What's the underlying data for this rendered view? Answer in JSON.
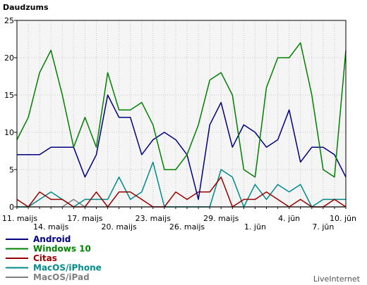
{
  "chart_data": {
    "type": "line",
    "ylabel": "Daudzums",
    "ylim": [
      0,
      25
    ],
    "yticks": [
      0,
      5,
      10,
      15,
      20,
      25
    ],
    "grid": true,
    "legend_position": "bottom-left",
    "x_count": 30,
    "x_tick_labels": [
      {
        "index": 0,
        "label": "11. maijs",
        "row": 1
      },
      {
        "index": 3,
        "label": "14. maijs",
        "row": 2
      },
      {
        "index": 6,
        "label": "17. maijs",
        "row": 1
      },
      {
        "index": 9,
        "label": "20. maijs",
        "row": 2
      },
      {
        "index": 12,
        "label": "23. maijs",
        "row": 1
      },
      {
        "index": 15,
        "label": "26. maijs",
        "row": 2
      },
      {
        "index": 18,
        "label": "29. maijs",
        "row": 1
      },
      {
        "index": 21,
        "label": "1. jūn",
        "row": 2
      },
      {
        "index": 24,
        "label": "4. jūn",
        "row": 1
      },
      {
        "index": 27,
        "label": "7. jūn",
        "row": 2
      },
      {
        "index": 29,
        "label": "10. jūn",
        "row": 1
      }
    ],
    "series": [
      {
        "name": "Android",
        "color": "#000080",
        "values": [
          7,
          7,
          7,
          8,
          8,
          8,
          4,
          7,
          15,
          12,
          12,
          7,
          9,
          10,
          9,
          7,
          1,
          11,
          14,
          8,
          11,
          10,
          8,
          9,
          13,
          6,
          8,
          8,
          7,
          4
        ]
      },
      {
        "name": "Windows 10",
        "color": "#008000",
        "values": [
          9,
          12,
          18,
          21,
          15,
          8,
          12,
          8,
          18,
          13,
          13,
          14,
          11,
          5,
          5,
          7,
          11,
          17,
          18,
          15,
          5,
          4,
          16,
          20,
          20,
          22,
          15,
          5,
          4,
          21
        ]
      },
      {
        "name": "Citas",
        "color": "#990000",
        "values": [
          1,
          0,
          2,
          1,
          1,
          0,
          0,
          2,
          0,
          2,
          2,
          1,
          0,
          0,
          2,
          1,
          2,
          2,
          4,
          0,
          1,
          1,
          2,
          1,
          0,
          1,
          0,
          0,
          1,
          0
        ]
      },
      {
        "name": "MacOS/iPhone",
        "color": "#008b8b",
        "values": [
          0,
          0,
          1,
          2,
          1,
          0,
          1,
          1,
          1,
          4,
          1,
          2,
          6,
          0,
          0,
          0,
          0,
          0,
          5,
          4,
          0,
          3,
          1,
          3,
          2,
          3,
          0,
          1,
          1,
          1
        ]
      },
      {
        "name": "MacOS/iPad",
        "color": "#808080",
        "values": [
          0,
          0,
          0,
          0,
          0,
          1,
          0,
          0,
          0,
          0,
          0,
          0,
          0,
          0,
          0,
          0,
          0,
          0,
          0,
          0,
          0,
          0,
          0,
          0,
          0,
          0,
          0,
          0,
          0,
          0
        ]
      }
    ]
  },
  "credit": "LiveInternet"
}
